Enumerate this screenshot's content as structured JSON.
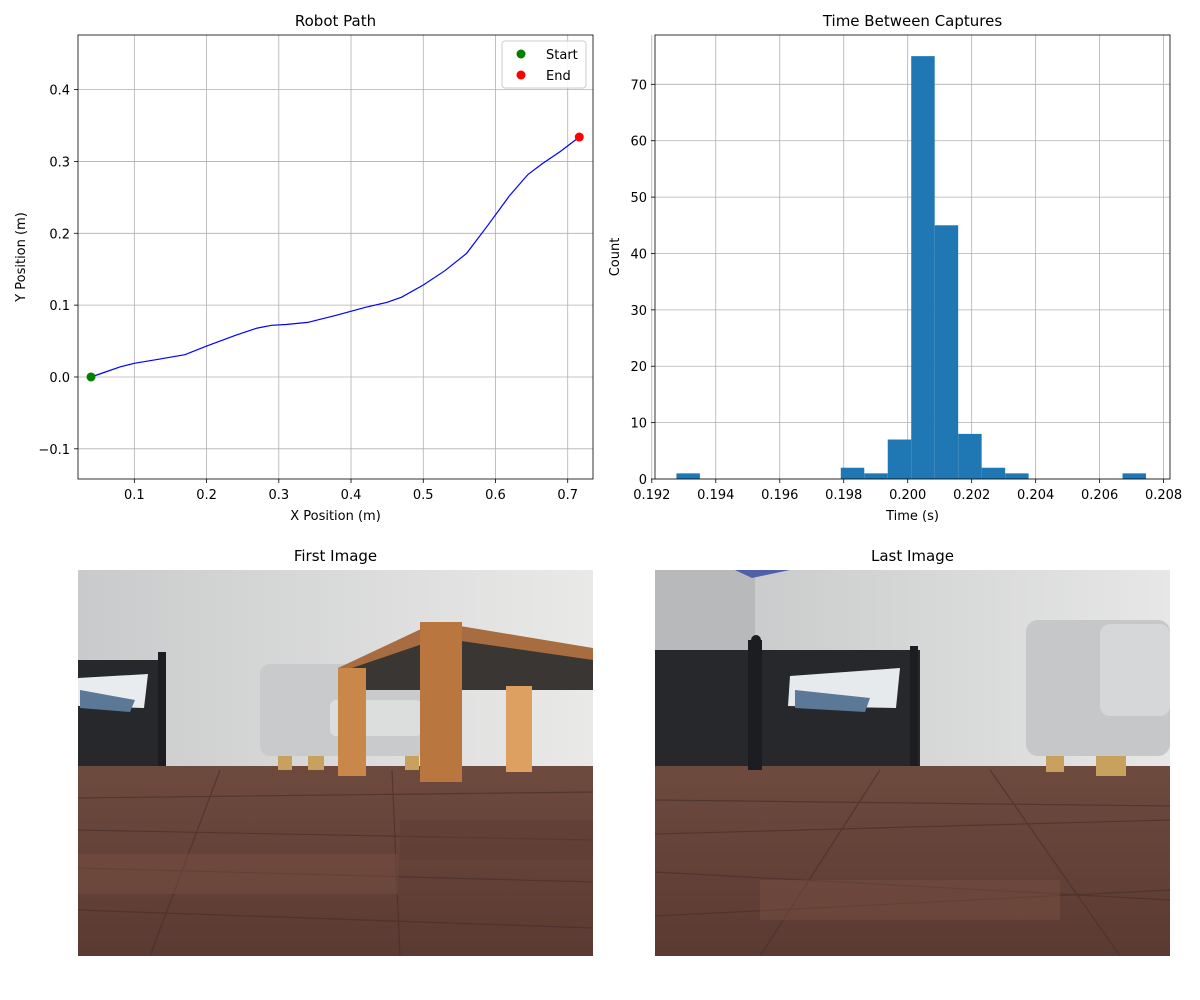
{
  "chart_data": [
    {
      "type": "line",
      "title": "Robot Path",
      "xlabel": "X Position (m)",
      "ylabel": "Y Position (m)",
      "xlim": [
        0.022,
        0.735
      ],
      "ylim": [
        -0.142,
        0.476
      ],
      "xticks": [
        0.1,
        0.2,
        0.3,
        0.4,
        0.5,
        0.6,
        0.7
      ],
      "xtick_labels": [
        "0.1",
        "0.2",
        "0.3",
        "0.4",
        "0.5",
        "0.6",
        "0.7"
      ],
      "yticks": [
        -0.1,
        0.0,
        0.1,
        0.2,
        0.3,
        0.4
      ],
      "ytick_labels": [
        "−0.1",
        "0.0",
        "0.1",
        "0.2",
        "0.3",
        "0.4"
      ],
      "grid": true,
      "legend": "top-right",
      "series": [
        {
          "color": "#0000ff",
          "x": [
            0.04,
            0.06,
            0.08,
            0.1,
            0.13,
            0.17,
            0.2,
            0.24,
            0.27,
            0.29,
            0.31,
            0.34,
            0.38,
            0.42,
            0.45,
            0.47,
            0.5,
            0.53,
            0.56,
            0.59,
            0.62,
            0.645,
            0.665,
            0.69,
            0.716
          ],
          "y": [
            0.0,
            0.007,
            0.014,
            0.019,
            0.024,
            0.031,
            0.043,
            0.058,
            0.068,
            0.072,
            0.073,
            0.076,
            0.086,
            0.097,
            0.104,
            0.111,
            0.128,
            0.148,
            0.172,
            0.212,
            0.253,
            0.282,
            0.297,
            0.314,
            0.334
          ]
        }
      ],
      "markers": [
        {
          "name": "Start",
          "x": 0.04,
          "y": 0.0,
          "color": "#008000"
        },
        {
          "name": "End",
          "x": 0.716,
          "y": 0.334,
          "color": "#ff0000"
        }
      ]
    },
    {
      "type": "bar",
      "title": "Time Between Captures",
      "xlabel": "Time (s)",
      "ylabel": "Count",
      "xlim": [
        0.1921,
        0.2082
      ],
      "ylim": [
        0,
        78.75
      ],
      "xticks": [
        0.192,
        0.194,
        0.196,
        0.198,
        0.2,
        0.202,
        0.204,
        0.206,
        0.208
      ],
      "xtick_labels": [
        "0.192",
        "0.194",
        "0.196",
        "0.198",
        "0.200",
        "0.202",
        "0.204",
        "0.206",
        "0.208"
      ],
      "yticks": [
        0,
        10,
        20,
        30,
        40,
        50,
        60,
        70
      ],
      "ytick_labels": [
        "0",
        "10",
        "20",
        "30",
        "40",
        "50",
        "60",
        "70"
      ],
      "grid": true,
      "color": "#1f77b4",
      "bin_start": 0.19277,
      "bin_width": 0.000734,
      "counts": [
        1,
        0,
        0,
        0,
        0,
        0,
        0,
        2,
        1,
        7,
        75,
        45,
        8,
        2,
        1,
        0,
        0,
        0,
        0,
        1
      ]
    }
  ],
  "images": {
    "first_title": "First Image",
    "last_title": "Last Image"
  }
}
